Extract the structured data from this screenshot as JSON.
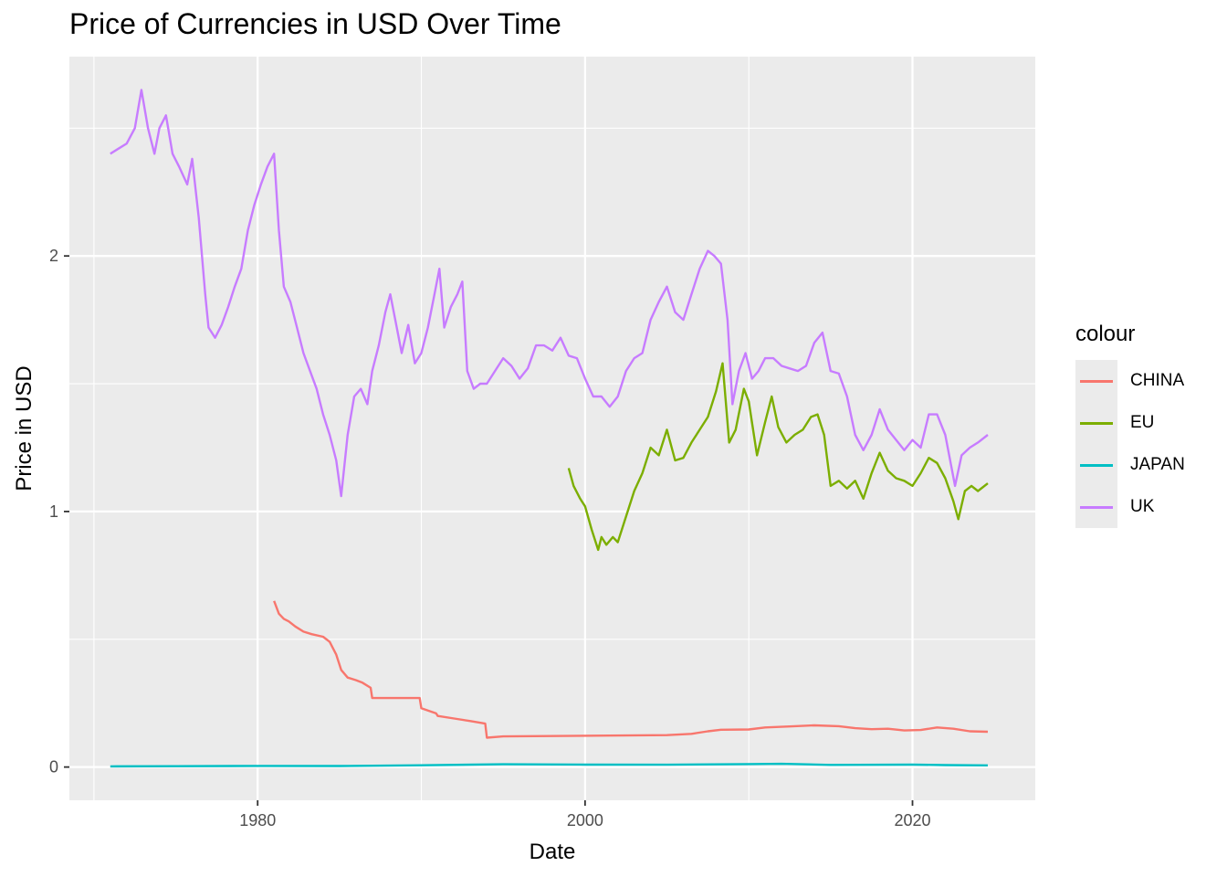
{
  "chart_data": {
    "type": "line",
    "title": "Price of Currencies in USD Over Time",
    "xlabel": "Date",
    "ylabel": "Price in USD",
    "xlim": [
      1968.5,
      2027.5
    ],
    "ylim": [
      -0.13,
      2.78
    ],
    "x_ticks": [
      1980,
      2000,
      2020
    ],
    "x_minor_ticks": [
      1970,
      1990,
      2010
    ],
    "y_ticks": [
      0,
      1,
      2
    ],
    "y_minor_ticks": [
      0.5,
      1.5,
      2.5
    ],
    "grid": true,
    "legend": {
      "title": "colour",
      "position": "right"
    },
    "series": [
      {
        "name": "CHINA",
        "color": "#F8766D",
        "points": [
          [
            1981.0,
            0.65
          ],
          [
            1981.3,
            0.6
          ],
          [
            1981.6,
            0.58
          ],
          [
            1981.9,
            0.57
          ],
          [
            1982.3,
            0.55
          ],
          [
            1982.8,
            0.53
          ],
          [
            1983.3,
            0.52
          ],
          [
            1984.0,
            0.51
          ],
          [
            1984.4,
            0.49
          ],
          [
            1984.8,
            0.44
          ],
          [
            1985.1,
            0.38
          ],
          [
            1985.5,
            0.35
          ],
          [
            1986.0,
            0.34
          ],
          [
            1986.4,
            0.33
          ],
          [
            1986.9,
            0.31
          ],
          [
            1987.0,
            0.27
          ],
          [
            1989.9,
            0.27
          ],
          [
            1990.0,
            0.23
          ],
          [
            1990.9,
            0.21
          ],
          [
            1991.0,
            0.2
          ],
          [
            1992.0,
            0.19
          ],
          [
            1993.0,
            0.18
          ],
          [
            1993.9,
            0.17
          ],
          [
            1994.0,
            0.115
          ],
          [
            1995.0,
            0.12
          ],
          [
            2005.0,
            0.125
          ],
          [
            2006.5,
            0.13
          ],
          [
            2007.5,
            0.14
          ],
          [
            2008.3,
            0.146
          ],
          [
            2010.0,
            0.147
          ],
          [
            2011.0,
            0.155
          ],
          [
            2012.5,
            0.159
          ],
          [
            2014.0,
            0.163
          ],
          [
            2015.5,
            0.16
          ],
          [
            2016.5,
            0.152
          ],
          [
            2017.5,
            0.148
          ],
          [
            2018.5,
            0.15
          ],
          [
            2019.5,
            0.143
          ],
          [
            2020.5,
            0.145
          ],
          [
            2021.5,
            0.155
          ],
          [
            2022.5,
            0.15
          ],
          [
            2023.5,
            0.14
          ],
          [
            2024.6,
            0.138
          ]
        ]
      },
      {
        "name": "EU",
        "color": "#7CAE00",
        "points": [
          [
            1999.0,
            1.17
          ],
          [
            1999.3,
            1.1
          ],
          [
            1999.7,
            1.05
          ],
          [
            2000.0,
            1.02
          ],
          [
            2000.4,
            0.93
          ],
          [
            2000.8,
            0.85
          ],
          [
            2001.0,
            0.9
          ],
          [
            2001.3,
            0.87
          ],
          [
            2001.7,
            0.9
          ],
          [
            2002.0,
            0.88
          ],
          [
            2002.5,
            0.98
          ],
          [
            2003.0,
            1.08
          ],
          [
            2003.5,
            1.15
          ],
          [
            2004.0,
            1.25
          ],
          [
            2004.5,
            1.22
          ],
          [
            2005.0,
            1.32
          ],
          [
            2005.5,
            1.2
          ],
          [
            2006.0,
            1.21
          ],
          [
            2006.5,
            1.27
          ],
          [
            2007.0,
            1.32
          ],
          [
            2007.5,
            1.37
          ],
          [
            2008.0,
            1.47
          ],
          [
            2008.4,
            1.58
          ],
          [
            2008.8,
            1.27
          ],
          [
            2009.2,
            1.32
          ],
          [
            2009.7,
            1.48
          ],
          [
            2010.0,
            1.43
          ],
          [
            2010.5,
            1.22
          ],
          [
            2011.0,
            1.35
          ],
          [
            2011.4,
            1.45
          ],
          [
            2011.8,
            1.33
          ],
          [
            2012.3,
            1.27
          ],
          [
            2012.8,
            1.3
          ],
          [
            2013.3,
            1.32
          ],
          [
            2013.8,
            1.37
          ],
          [
            2014.2,
            1.38
          ],
          [
            2014.6,
            1.3
          ],
          [
            2015.0,
            1.1
          ],
          [
            2015.5,
            1.12
          ],
          [
            2016.0,
            1.09
          ],
          [
            2016.5,
            1.12
          ],
          [
            2017.0,
            1.05
          ],
          [
            2017.5,
            1.15
          ],
          [
            2018.0,
            1.23
          ],
          [
            2018.5,
            1.16
          ],
          [
            2019.0,
            1.13
          ],
          [
            2019.5,
            1.12
          ],
          [
            2020.0,
            1.1
          ],
          [
            2020.5,
            1.15
          ],
          [
            2021.0,
            1.21
          ],
          [
            2021.5,
            1.19
          ],
          [
            2022.0,
            1.13
          ],
          [
            2022.5,
            1.04
          ],
          [
            2022.8,
            0.97
          ],
          [
            2023.2,
            1.08
          ],
          [
            2023.6,
            1.1
          ],
          [
            2024.0,
            1.08
          ],
          [
            2024.6,
            1.11
          ]
        ]
      },
      {
        "name": "JAPAN",
        "color": "#00BFC4",
        "points": [
          [
            1971.0,
            0.0028
          ],
          [
            1975.0,
            0.0034
          ],
          [
            1980.0,
            0.0045
          ],
          [
            1985.0,
            0.0042
          ],
          [
            1990.0,
            0.0069
          ],
          [
            1995.0,
            0.0107
          ],
          [
            2000.0,
            0.0093
          ],
          [
            2005.0,
            0.009
          ],
          [
            2010.0,
            0.0114
          ],
          [
            2012.0,
            0.0125
          ],
          [
            2015.0,
            0.0083
          ],
          [
            2020.0,
            0.0093
          ],
          [
            2022.0,
            0.0076
          ],
          [
            2024.6,
            0.0066
          ]
        ]
      },
      {
        "name": "UK",
        "color": "#C77CFF",
        "points": [
          [
            1971.0,
            2.4
          ],
          [
            1971.5,
            2.42
          ],
          [
            1972.0,
            2.44
          ],
          [
            1972.5,
            2.5
          ],
          [
            1972.9,
            2.65
          ],
          [
            1973.3,
            2.5
          ],
          [
            1973.7,
            2.4
          ],
          [
            1974.0,
            2.5
          ],
          [
            1974.4,
            2.55
          ],
          [
            1974.8,
            2.4
          ],
          [
            1975.2,
            2.35
          ],
          [
            1975.7,
            2.28
          ],
          [
            1976.0,
            2.38
          ],
          [
            1976.4,
            2.15
          ],
          [
            1976.8,
            1.85
          ],
          [
            1977.0,
            1.72
          ],
          [
            1977.4,
            1.68
          ],
          [
            1977.8,
            1.73
          ],
          [
            1978.2,
            1.8
          ],
          [
            1978.6,
            1.88
          ],
          [
            1979.0,
            1.95
          ],
          [
            1979.4,
            2.1
          ],
          [
            1979.8,
            2.2
          ],
          [
            1980.2,
            2.28
          ],
          [
            1980.6,
            2.35
          ],
          [
            1981.0,
            2.4
          ],
          [
            1981.3,
            2.1
          ],
          [
            1981.6,
            1.88
          ],
          [
            1982.0,
            1.82
          ],
          [
            1982.4,
            1.72
          ],
          [
            1982.8,
            1.62
          ],
          [
            1983.2,
            1.55
          ],
          [
            1983.6,
            1.48
          ],
          [
            1984.0,
            1.38
          ],
          [
            1984.4,
            1.3
          ],
          [
            1984.8,
            1.2
          ],
          [
            1985.1,
            1.06
          ],
          [
            1985.5,
            1.3
          ],
          [
            1985.9,
            1.45
          ],
          [
            1986.3,
            1.48
          ],
          [
            1986.7,
            1.42
          ],
          [
            1987.0,
            1.55
          ],
          [
            1987.4,
            1.65
          ],
          [
            1987.8,
            1.78
          ],
          [
            1988.1,
            1.85
          ],
          [
            1988.5,
            1.72
          ],
          [
            1988.8,
            1.62
          ],
          [
            1989.2,
            1.73
          ],
          [
            1989.6,
            1.58
          ],
          [
            1990.0,
            1.62
          ],
          [
            1990.4,
            1.72
          ],
          [
            1990.8,
            1.85
          ],
          [
            1991.1,
            1.95
          ],
          [
            1991.4,
            1.72
          ],
          [
            1991.8,
            1.8
          ],
          [
            1992.2,
            1.85
          ],
          [
            1992.5,
            1.9
          ],
          [
            1992.8,
            1.55
          ],
          [
            1993.2,
            1.48
          ],
          [
            1993.6,
            1.5
          ],
          [
            1994.0,
            1.5
          ],
          [
            1994.5,
            1.55
          ],
          [
            1995.0,
            1.6
          ],
          [
            1995.5,
            1.57
          ],
          [
            1996.0,
            1.52
          ],
          [
            1996.5,
            1.56
          ],
          [
            1997.0,
            1.65
          ],
          [
            1997.5,
            1.65
          ],
          [
            1998.0,
            1.63
          ],
          [
            1998.5,
            1.68
          ],
          [
            1999.0,
            1.61
          ],
          [
            1999.5,
            1.6
          ],
          [
            2000.0,
            1.52
          ],
          [
            2000.5,
            1.45
          ],
          [
            2001.0,
            1.45
          ],
          [
            2001.5,
            1.41
          ],
          [
            2002.0,
            1.45
          ],
          [
            2002.5,
            1.55
          ],
          [
            2003.0,
            1.6
          ],
          [
            2003.5,
            1.62
          ],
          [
            2004.0,
            1.75
          ],
          [
            2004.5,
            1.82
          ],
          [
            2005.0,
            1.88
          ],
          [
            2005.5,
            1.78
          ],
          [
            2006.0,
            1.75
          ],
          [
            2006.5,
            1.85
          ],
          [
            2007.0,
            1.95
          ],
          [
            2007.5,
            2.02
          ],
          [
            2007.9,
            2.0
          ],
          [
            2008.3,
            1.97
          ],
          [
            2008.7,
            1.75
          ],
          [
            2009.0,
            1.42
          ],
          [
            2009.4,
            1.55
          ],
          [
            2009.8,
            1.62
          ],
          [
            2010.2,
            1.52
          ],
          [
            2010.6,
            1.55
          ],
          [
            2011.0,
            1.6
          ],
          [
            2011.5,
            1.6
          ],
          [
            2012.0,
            1.57
          ],
          [
            2012.5,
            1.56
          ],
          [
            2013.0,
            1.55
          ],
          [
            2013.5,
            1.57
          ],
          [
            2014.0,
            1.66
          ],
          [
            2014.5,
            1.7
          ],
          [
            2015.0,
            1.55
          ],
          [
            2015.5,
            1.54
          ],
          [
            2016.0,
            1.45
          ],
          [
            2016.5,
            1.3
          ],
          [
            2017.0,
            1.24
          ],
          [
            2017.5,
            1.3
          ],
          [
            2018.0,
            1.4
          ],
          [
            2018.5,
            1.32
          ],
          [
            2019.0,
            1.28
          ],
          [
            2019.5,
            1.24
          ],
          [
            2020.0,
            1.28
          ],
          [
            2020.5,
            1.25
          ],
          [
            2021.0,
            1.38
          ],
          [
            2021.5,
            1.38
          ],
          [
            2022.0,
            1.3
          ],
          [
            2022.6,
            1.1
          ],
          [
            2023.0,
            1.22
          ],
          [
            2023.5,
            1.25
          ],
          [
            2024.0,
            1.27
          ],
          [
            2024.6,
            1.3
          ]
        ]
      }
    ]
  }
}
